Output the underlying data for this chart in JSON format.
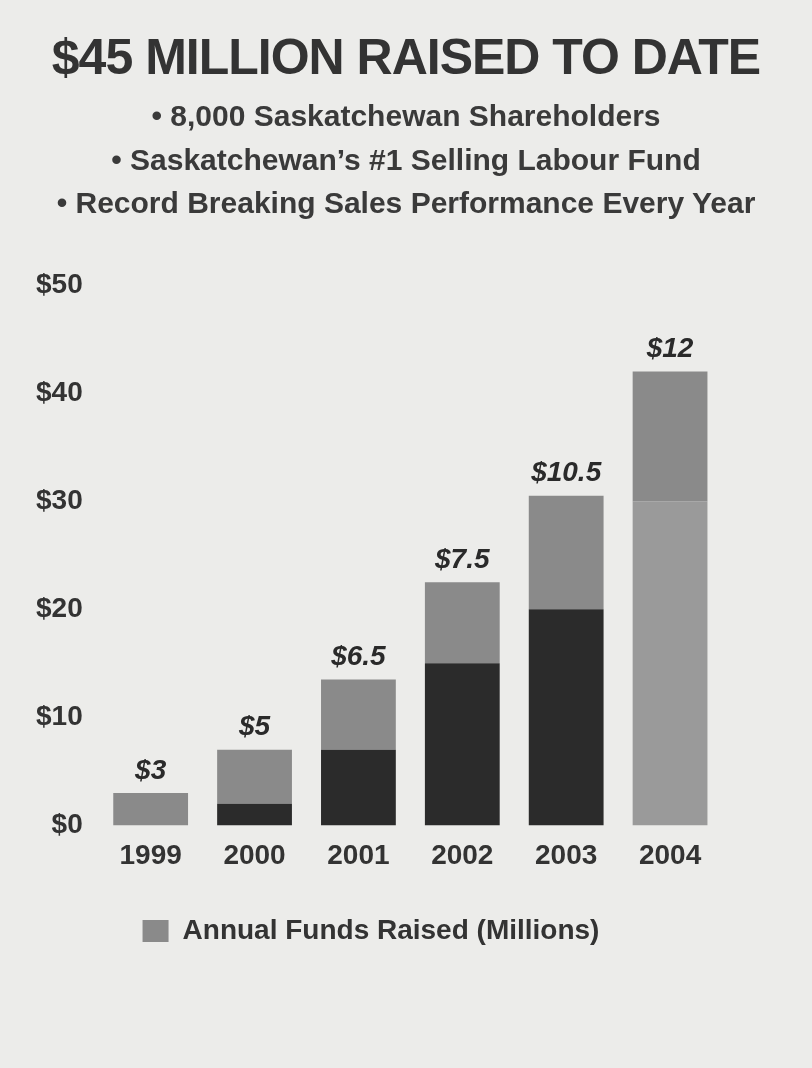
{
  "chart_data": {
    "type": "bar",
    "title": "$45 MILLION RAISED TO DATE",
    "subtitle": "• 8,000 Saskatchewan Shareholders\n• Saskatchewan’s #1 Selling Labour Fund\n• Record Breaking Sales Performance Every Year",
    "categories": [
      "1999",
      "2000",
      "2001",
      "2002",
      "2003",
      "2004"
    ],
    "stacked": true,
    "series": [
      {
        "colors": [
          "#2b2b2b",
          "#2b2b2b",
          "#2b2b2b",
          "#2b2b2b",
          "#2b2b2b",
          "#9a9a9a"
        ],
        "values": [
          0,
          2,
          7,
          15,
          20,
          30
        ]
      },
      {
        "name": "Annual Funds Raised (Millions)",
        "color": "#8a8a8a",
        "values": [
          3,
          5,
          6.5,
          7.5,
          10.5,
          12
        ],
        "value_labels": [
          "$3",
          "$5",
          "$6.5",
          "$7.5",
          "$10.5",
          "$12"
        ]
      }
    ],
    "ylim": [
      0,
      50
    ],
    "yticks": [
      {
        "value": 0,
        "label": "$0"
      },
      {
        "value": 10,
        "label": "$10"
      },
      {
        "value": 20,
        "label": "$20"
      },
      {
        "value": 30,
        "label": "$30"
      },
      {
        "value": 40,
        "label": "$40"
      },
      {
        "value": 50,
        "label": "$50"
      }
    ],
    "grid": false,
    "legend": "bottom"
  }
}
